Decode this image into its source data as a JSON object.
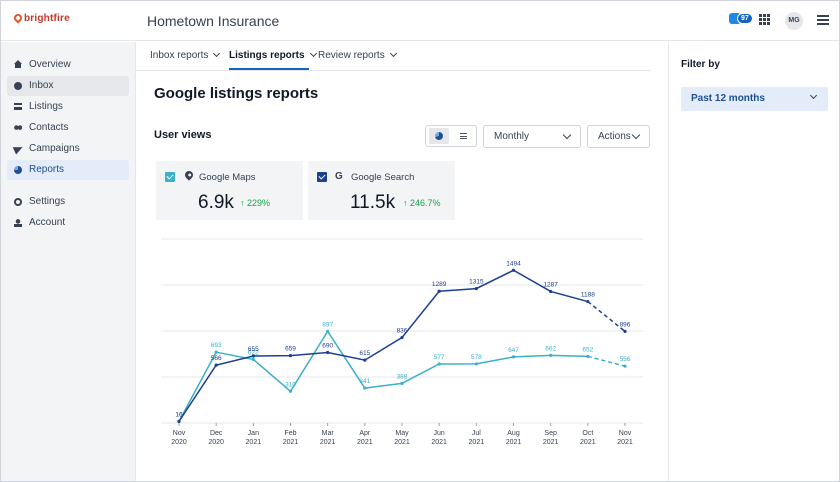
{
  "topbar": {
    "logo_text": "brightfire",
    "app_title": "Hometown Insurance",
    "notification_count": "97",
    "avatar_initials": "MG"
  },
  "sidebar": {
    "items": [
      {
        "label": "Overview",
        "icon": "home-icon"
      },
      {
        "label": "Inbox",
        "icon": "chat-bubble-icon"
      },
      {
        "label": "Listings",
        "icon": "list-icon"
      },
      {
        "label": "Contacts",
        "icon": "people-icon"
      },
      {
        "label": "Campaigns",
        "icon": "send-icon"
      },
      {
        "label": "Reports",
        "icon": "pie-chart-icon"
      },
      {
        "label": "Settings",
        "icon": "gear-icon"
      },
      {
        "label": "Account",
        "icon": "user-icon"
      }
    ]
  },
  "tabs": [
    {
      "label": "Inbox reports"
    },
    {
      "label": "Listings reports"
    },
    {
      "label": "Review reports"
    }
  ],
  "page": {
    "title": "Google listings reports",
    "section_title": "User views",
    "period_select": "Monthly",
    "actions_label": "Actions"
  },
  "cards": [
    {
      "name": "Google Maps",
      "value": "6.9k",
      "delta": "↑ 229%",
      "color": "#3bb0c9",
      "icon": "map-pin-icon"
    },
    {
      "name": "Google Search",
      "value": "11.5k",
      "delta": "↑ 246.7%",
      "color": "#1d3f8f",
      "icon": "google-g-icon"
    }
  ],
  "filter": {
    "title": "Filter by",
    "selected": "Past 12 months"
  },
  "chart_data": {
    "type": "line",
    "categories": [
      [
        "Nov",
        "2020"
      ],
      [
        "Dec",
        "2020"
      ],
      [
        "Jan",
        "2021"
      ],
      [
        "Feb",
        "2021"
      ],
      [
        "Mar",
        "2021"
      ],
      [
        "Apr",
        "2021"
      ],
      [
        "May",
        "2021"
      ],
      [
        "Jun",
        "2021"
      ],
      [
        "Jul",
        "2021"
      ],
      [
        "Aug",
        "2021"
      ],
      [
        "Sep",
        "2021"
      ],
      [
        "Oct",
        "2021"
      ],
      [
        "Nov",
        "2021"
      ]
    ],
    "series": [
      {
        "name": "Google Search",
        "color": "#1d3f8f",
        "values": [
          16,
          566,
          655,
          659,
          690,
          615,
          836,
          1289,
          1315,
          1494,
          1287,
          1188,
          896
        ],
        "last_segment_dashed": true
      },
      {
        "name": "Google Maps",
        "color": "#3bb0c9",
        "values": [
          16,
          693,
          622,
          310,
          897,
          341,
          388,
          577,
          578,
          647,
          662,
          652,
          556
        ],
        "last_segment_dashed": true
      }
    ],
    "ylim": [
      0,
      1800
    ],
    "grid": true
  }
}
